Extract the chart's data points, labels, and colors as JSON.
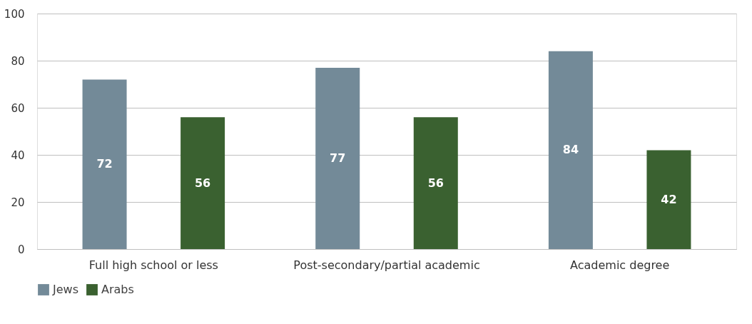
{
  "chart_data": {
    "type": "bar",
    "categories": [
      "Full high school or less",
      "Post-secondary/partial academic",
      "Academic degree"
    ],
    "series": [
      {
        "name": "Jews",
        "color": "#738a98",
        "values": [
          72,
          77,
          84
        ]
      },
      {
        "name": "Arabs",
        "color": "#3a6130",
        "values": [
          56,
          56,
          42
        ]
      }
    ],
    "ylim": [
      0,
      100
    ],
    "yticks": [
      0,
      20,
      40,
      60,
      80,
      100
    ],
    "grid": "y",
    "legend": "bottom",
    "data_labels": true
  }
}
